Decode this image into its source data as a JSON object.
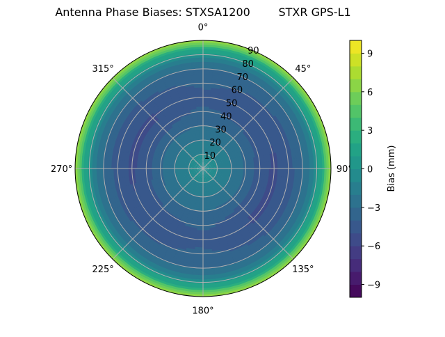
{
  "chart_data": {
    "type": "heatmap",
    "subtype": "polar-filled-contour",
    "title": "Antenna Phase Biases: STXSA1200        STXR GPS-L1",
    "colormap": "viridis",
    "radial_ticks": [
      "10",
      "20",
      "30",
      "40",
      "50",
      "60",
      "70",
      "80",
      "90"
    ],
    "radial_range": [
      0,
      90
    ],
    "angular_ticks": [
      "0°",
      "45°",
      "90°",
      "135°",
      "180°",
      "225°",
      "270°",
      "315°"
    ],
    "angular_zero": "top",
    "angular_direction": "clockwise",
    "grid": true,
    "colorbar": {
      "label": "Bias (mm)",
      "range": [
        -10,
        10
      ],
      "levels": 20,
      "ticks": [
        "9",
        "6",
        "3",
        "0",
        "−3",
        "−6",
        "−9"
      ],
      "tick_values": [
        9,
        6,
        3,
        0,
        -3,
        -6,
        -9
      ]
    },
    "zenith": [
      0,
      10,
      20,
      30,
      40,
      50,
      60,
      70,
      75,
      80,
      85,
      90
    ],
    "azimuth": [
      0,
      45,
      90,
      135,
      180,
      225,
      270,
      315
    ],
    "bias_mm": [
      [
        -0.5,
        -1,
        -2,
        -3,
        -3.8,
        -4.2,
        -3.8,
        -3,
        -2,
        0,
        3,
        7
      ],
      [
        -0.5,
        -1,
        -2,
        -3,
        -4.2,
        -4.8,
        -4.2,
        -3,
        -2,
        0,
        3,
        7
      ],
      [
        -0.5,
        -1,
        -2,
        -3.2,
        -4.5,
        -5.2,
        -4.5,
        -3.2,
        -2,
        0,
        3,
        7
      ],
      [
        -0.5,
        -1,
        -2,
        -3.2,
        -4.5,
        -5.2,
        -4.5,
        -3.2,
        -2,
        0,
        3,
        7
      ],
      [
        -0.5,
        -1,
        -2,
        -3,
        -3.8,
        -4.2,
        -3.8,
        -3,
        -2,
        0,
        3,
        7
      ],
      [
        -0.5,
        -1,
        -2,
        -3,
        -4.2,
        -4.8,
        -4.2,
        -3,
        -2,
        0,
        3,
        7
      ],
      [
        -0.5,
        -1,
        -2,
        -3.2,
        -4.5,
        -5.2,
        -4.5,
        -3.2,
        -2,
        0,
        3,
        7
      ],
      [
        -0.5,
        -1,
        -2,
        -3.2,
        -4.5,
        -5.2,
        -4.5,
        -3.2,
        -2,
        0,
        3,
        7
      ]
    ]
  }
}
